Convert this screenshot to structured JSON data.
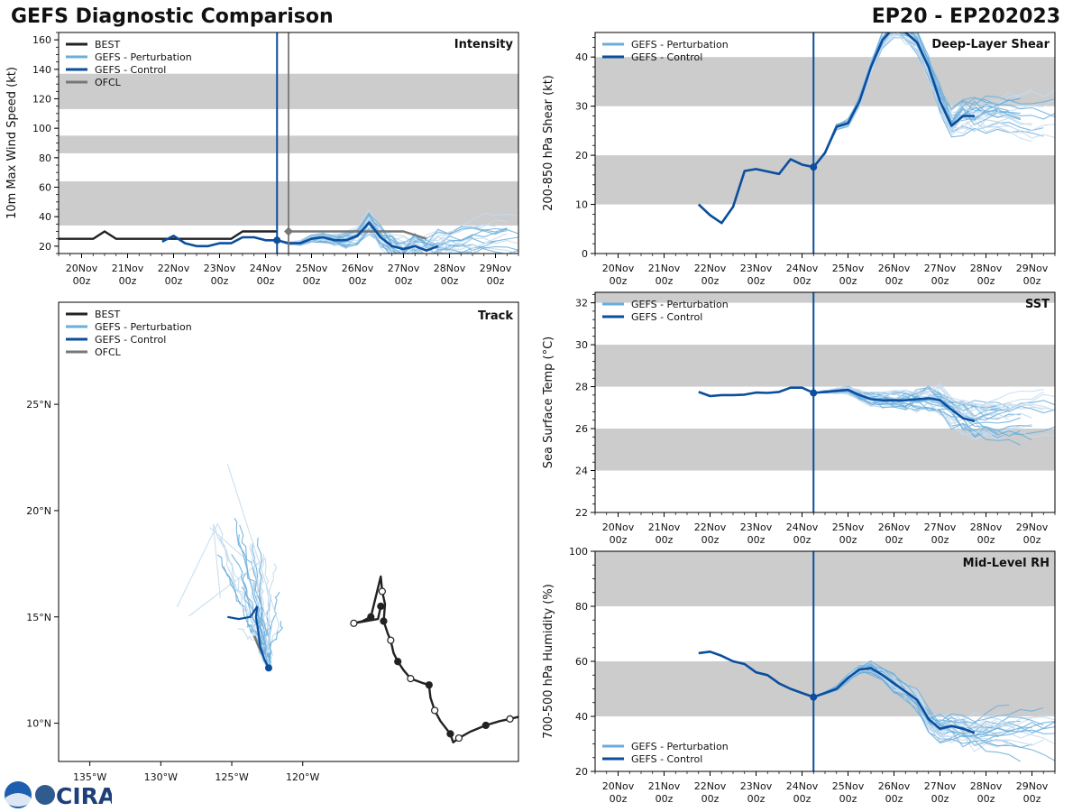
{
  "header": {
    "title": "GEFS Diagnostic Comparison",
    "storm_id": "EP20 - EP202023"
  },
  "logo": {
    "text": "CIRA"
  },
  "colors": {
    "best": "#222222",
    "perturbation": "#6aaedb",
    "control": "#0b4e9e",
    "ofcl": "#777777",
    "band": "#cccccc",
    "perturbation_light": "#c4dbee"
  },
  "time_axis": {
    "min": 19.5,
    "max": 29.5,
    "ticks": [
      20,
      21,
      22,
      23,
      24,
      25,
      26,
      27,
      28,
      29
    ],
    "tick_labels": [
      [
        "20Nov",
        "00z"
      ],
      [
        "21Nov",
        "00z"
      ],
      [
        "22Nov",
        "00z"
      ],
      [
        "23Nov",
        "00z"
      ],
      [
        "24Nov",
        "00z"
      ],
      [
        "25Nov",
        "00z"
      ],
      [
        "26Nov",
        "00z"
      ],
      [
        "27Nov",
        "00z"
      ],
      [
        "28Nov",
        "00z"
      ],
      [
        "29Nov",
        "00z"
      ]
    ]
  },
  "chart_data": [
    {
      "id": "intensity",
      "type": "line",
      "title": "Intensity",
      "ylabel": "10m Max Wind Speed (kt)",
      "ylim": [
        15,
        165
      ],
      "yticks": [
        20,
        40,
        60,
        80,
        100,
        120,
        140,
        160
      ],
      "bands": [
        [
          34,
          64
        ],
        [
          83,
          95
        ],
        [
          113,
          137
        ]
      ],
      "init_time": 24.25,
      "ofcl_marker_time": 24.5,
      "legend": [
        "BEST",
        "GEFS - Perturbation",
        "GEFS - Control",
        "OFCL"
      ],
      "series": [
        {
          "name": "BEST",
          "x": [
            19.5,
            20,
            20.25,
            20.5,
            20.75,
            21,
            21.5,
            22,
            22.5,
            23,
            23.25,
            23.5,
            23.75,
            24,
            24.25
          ],
          "y": [
            25,
            25,
            25,
            30,
            25,
            25,
            25,
            25,
            25,
            25,
            25,
            30,
            30,
            30,
            30
          ]
        },
        {
          "name": "OFCL",
          "x": [
            24.5,
            25,
            25.5,
            26,
            26.5,
            27,
            27.5
          ],
          "y": [
            30,
            30,
            30,
            30,
            30,
            30,
            25
          ]
        },
        {
          "name": "GEFS - Control",
          "x": [
            21.75,
            22,
            22.25,
            22.5,
            22.75,
            23,
            23.25,
            23.5,
            23.75,
            24,
            24.25,
            24.5,
            24.75,
            25,
            25.25,
            25.5,
            25.75,
            26,
            26.25,
            26.5,
            26.75,
            27,
            27.25,
            27.5,
            27.75
          ],
          "y": [
            23,
            27,
            22,
            20,
            20,
            22,
            22,
            26,
            26,
            24,
            24,
            22,
            22,
            25,
            26,
            24,
            24,
            27,
            36,
            26,
            20,
            18,
            20,
            17,
            20
          ]
        }
      ]
    },
    {
      "id": "track",
      "type": "map",
      "title": "Track",
      "xlim": [
        -137.2,
        -104.8
      ],
      "ylim": [
        8.2,
        29.8
      ],
      "xticks": [
        -135,
        -130,
        -125,
        -120
      ],
      "xtick_labels": [
        "135°W",
        "130°W",
        "125°W",
        "120°W"
      ],
      "yticks": [
        10,
        15,
        20,
        25
      ],
      "ytick_labels": [
        "10°N",
        "15°N",
        "20°N",
        "25°N"
      ],
      "legend": [
        "BEST",
        "GEFS - Perturbation",
        "GEFS - Control",
        "OFCL"
      ],
      "best_track": [
        [
          -104.8,
          10.3
        ],
        [
          -105.4,
          10.2
        ],
        [
          -106.1,
          10.1
        ],
        [
          -107.1,
          9.9
        ],
        [
          -108.2,
          9.6
        ],
        [
          -109.0,
          9.3
        ],
        [
          -109.4,
          9.1
        ],
        [
          -109.6,
          9.5
        ],
        [
          -110.3,
          10.1
        ],
        [
          -110.7,
          10.6
        ],
        [
          -111.0,
          11.2
        ],
        [
          -111.1,
          11.8
        ],
        [
          -111.6,
          11.9
        ],
        [
          -112.4,
          12.1
        ],
        [
          -112.9,
          12.5
        ],
        [
          -113.3,
          12.9
        ],
        [
          -113.6,
          13.3
        ],
        [
          -113.8,
          13.9
        ],
        [
          -114.0,
          14.2
        ],
        [
          -114.3,
          14.8
        ],
        [
          -114.2,
          15.6
        ],
        [
          -114.4,
          16.2
        ],
        [
          -114.5,
          16.9
        ],
        [
          -115.2,
          15.0
        ],
        [
          -115.8,
          14.8
        ],
        [
          -116.4,
          14.7
        ],
        [
          -114.7,
          14.9
        ],
        [
          -114.5,
          15.5
        ]
      ],
      "ofcl_track": [
        [
          -122.8,
          13.2
        ],
        [
          -123.1,
          13.6
        ],
        [
          -123.4,
          14.1
        ]
      ],
      "control_track": [
        [
          -122.4,
          12.6
        ],
        [
          -122.7,
          13.0
        ],
        [
          -123.0,
          13.6
        ],
        [
          -123.1,
          14.2
        ],
        [
          -123.3,
          15.0
        ],
        [
          -123.2,
          15.5
        ],
        [
          -123.7,
          15.0
        ],
        [
          -124.5,
          14.9
        ],
        [
          -125.3,
          15.0
        ]
      ],
      "current_position": [
        -122.4,
        12.6
      ]
    },
    {
      "id": "shear",
      "type": "line",
      "title": "Deep-Layer Shear",
      "ylabel": "200-850 hPa Shear (kt)",
      "ylim": [
        0,
        45
      ],
      "yticks": [
        0,
        10,
        20,
        30,
        40
      ],
      "bands": [
        [
          10,
          20
        ],
        [
          30,
          40
        ]
      ],
      "init_time": 24.25,
      "legend": [
        "GEFS - Perturbation",
        "GEFS - Control"
      ],
      "series": [
        {
          "name": "GEFS - Control",
          "x": [
            21.75,
            22,
            22.25,
            22.5,
            22.75,
            23,
            23.25,
            23.5,
            23.75,
            24,
            24.25,
            24.5,
            24.75,
            25,
            25.25,
            25.5,
            25.75,
            26,
            26.25,
            26.5,
            26.75,
            27,
            27.25,
            27.5,
            27.75
          ],
          "y": [
            10,
            7.8,
            6.2,
            9.5,
            16.8,
            17.2,
            16.7,
            16.2,
            19.2,
            18.1,
            17.6,
            20.5,
            25.8,
            26.5,
            31,
            38,
            43.5,
            46,
            45,
            43,
            38,
            31,
            26,
            28,
            28
          ]
        }
      ]
    },
    {
      "id": "sst",
      "type": "line",
      "title": "SST",
      "ylabel": "Sea Surface Temp (°C)",
      "ylim": [
        22,
        32.5
      ],
      "yticks": [
        22,
        24,
        26,
        28,
        30,
        32
      ],
      "bands": [
        [
          24,
          26
        ],
        [
          28,
          30
        ],
        [
          32,
          32.5
        ]
      ],
      "init_time": 24.25,
      "legend": [
        "GEFS - Perturbation",
        "GEFS - Control"
      ],
      "series": [
        {
          "name": "GEFS - Control",
          "x": [
            21.75,
            22,
            22.25,
            22.5,
            22.75,
            23,
            23.25,
            23.5,
            23.75,
            24,
            24.25,
            24.5,
            24.75,
            25,
            25.25,
            25.5,
            25.75,
            26,
            26.25,
            26.5,
            26.75,
            27,
            27.25,
            27.5,
            27.75
          ],
          "y": [
            27.75,
            27.55,
            27.6,
            27.6,
            27.62,
            27.72,
            27.7,
            27.75,
            27.95,
            27.95,
            27.7,
            27.75,
            27.8,
            27.85,
            27.6,
            27.4,
            27.35,
            27.35,
            27.35,
            27.4,
            27.45,
            27.35,
            26.9,
            26.5,
            26.35
          ]
        }
      ]
    },
    {
      "id": "rh",
      "type": "line",
      "title": "Mid-Level RH",
      "ylabel": "700-500 hPa Humidity (%)",
      "ylim": [
        20,
        100
      ],
      "yticks": [
        20,
        40,
        60,
        80,
        100
      ],
      "bands": [
        [
          40,
          60
        ],
        [
          80,
          100
        ]
      ],
      "init_time": 24.25,
      "legend": [
        "GEFS - Perturbation",
        "GEFS - Control"
      ],
      "series": [
        {
          "name": "GEFS - Control",
          "x": [
            21.75,
            22,
            22.25,
            22.5,
            22.75,
            23,
            23.25,
            23.5,
            23.75,
            24,
            24.25,
            24.5,
            24.75,
            25,
            25.25,
            25.5,
            25.75,
            26,
            26.25,
            26.5,
            26.75,
            27,
            27.25,
            27.5,
            27.75
          ],
          "y": [
            63,
            63.5,
            62,
            60,
            59,
            56,
            55,
            52,
            50,
            48.5,
            47,
            48.5,
            50,
            54,
            57,
            57.5,
            55,
            52,
            49,
            46,
            39,
            35.5,
            36.5,
            35.5,
            34
          ]
        }
      ]
    }
  ]
}
